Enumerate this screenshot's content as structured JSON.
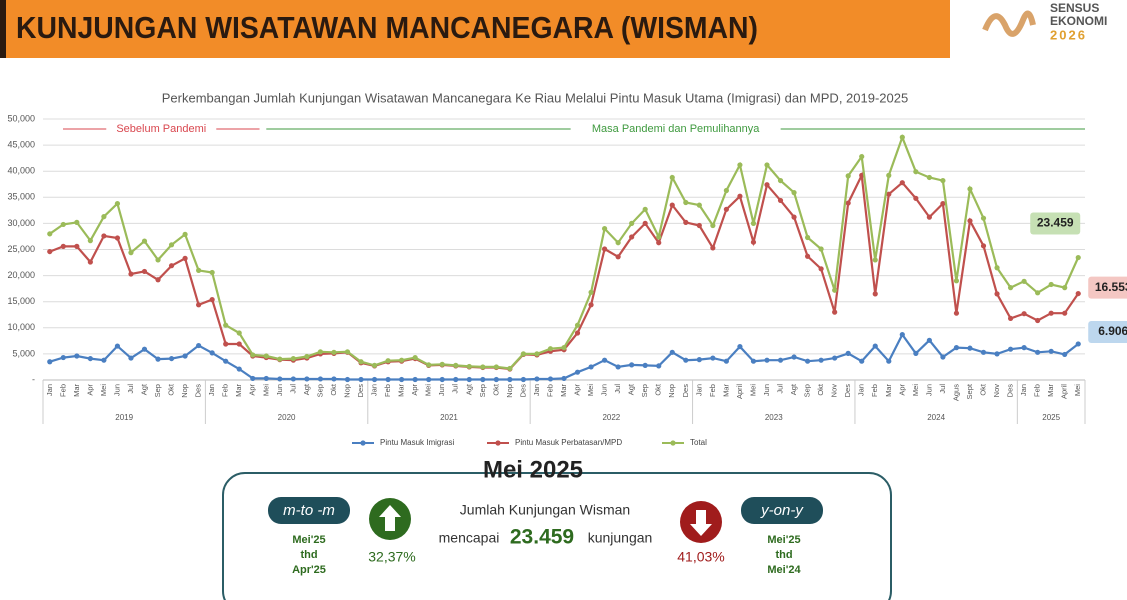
{
  "header": {
    "title": "KUNJUNGAN WISATAWAN MANCANEGARA (WISMAN)",
    "logo": [
      "SENSUS",
      "EKONOMI",
      "2026"
    ]
  },
  "chart_data": {
    "type": "line",
    "title": "Perkembangan Jumlah  Kunjungan Wisatawan Mancanegara Ke Riau Melalui Pintu Masuk Utama (Imigrasi) dan MPD, 2019-2025",
    "annotations": [
      {
        "text": "Sebelum Pandemi",
        "color": "#d9474f"
      },
      {
        "text": "Masa Pandemi dan Pemulihannya",
        "color": "#3f9a3f"
      }
    ],
    "years": [
      {
        "label": "2019",
        "months": [
          "Jan",
          "Feb",
          "Mar",
          "Apr",
          "Mei",
          "Jun",
          "Jul",
          "Agt",
          "Sep",
          "Okt",
          "Nop",
          "Des"
        ]
      },
      {
        "label": "2020",
        "months": [
          "Jan",
          "Feb",
          "Mar",
          "Apr",
          "Mei",
          "Jun",
          "Jul",
          "Agt",
          "Sep",
          "Okt",
          "Nop",
          "Des"
        ]
      },
      {
        "label": "2021",
        "months": [
          "Jan",
          "Feb",
          "Mar",
          "Apr",
          "Mei",
          "Jun",
          "Jul",
          "Agt",
          "Sep",
          "Okt",
          "Nop",
          "Des"
        ]
      },
      {
        "label": "2022",
        "months": [
          "Jan",
          "Feb",
          "Mar",
          "Apr",
          "Mei",
          "Jun",
          "Jul",
          "Agt",
          "Sep",
          "Okt",
          "Nop",
          "Des"
        ]
      },
      {
        "label": "2023",
        "months": [
          "Jan",
          "Feb",
          "Mar",
          "April",
          "Mei",
          "Jun",
          "Jul",
          "Agt",
          "Sep",
          "Okt",
          "Nov",
          "Des"
        ]
      },
      {
        "label": "2024",
        "months": [
          "Jan",
          "Feb",
          "Mar",
          "Apr",
          "Mei",
          "Jun",
          "Jul",
          "Agus",
          "Sept",
          "Okt",
          "Nov",
          "Des"
        ]
      },
      {
        "label": "2025",
        "months": [
          "Jan",
          "Feb",
          "Mar",
          "April",
          "Mei"
        ]
      }
    ],
    "series": [
      {
        "name": "Pintu Masuk Imigrasi",
        "color": "#4a7fc1",
        "values": [
          3500,
          4300,
          4600,
          4100,
          3800,
          6500,
          4200,
          5900,
          4000,
          4100,
          4600,
          6600,
          5200,
          3600,
          2100,
          300,
          300,
          200,
          200,
          200,
          200,
          200,
          100,
          100,
          100,
          100,
          100,
          100,
          100,
          100,
          100,
          100,
          100,
          100,
          100,
          100,
          200,
          200,
          300,
          1500,
          2500,
          3800,
          2500,
          2900,
          2800,
          2700,
          5300,
          3800,
          3900,
          4200,
          3600,
          6400,
          3600,
          3800,
          3800,
          4400,
          3600,
          3800,
          4200,
          5100,
          3600,
          6500,
          3600,
          8700,
          5100,
          7600,
          4400,
          6200,
          6100,
          5300,
          5000,
          5900,
          6200,
          5300,
          5500,
          4900,
          6906
        ],
        "value_labels": [
          null,
          null,
          null,
          null,
          null,
          null,
          null,
          null,
          null,
          null,
          null,
          null,
          null,
          null,
          null,
          null,
          null,
          null,
          null,
          null,
          null,
          null,
          null,
          null,
          null,
          null,
          null,
          null,
          null,
          null,
          null,
          null,
          null,
          null,
          null,
          null,
          null,
          null,
          null,
          null,
          null,
          null,
          null,
          null,
          null,
          null,
          null,
          null,
          null,
          null,
          null,
          null,
          null,
          null,
          null,
          null,
          null,
          null,
          null,
          null,
          null,
          null,
          null,
          null,
          null,
          null,
          null,
          null,
          null,
          null,
          null,
          null,
          null,
          null,
          null,
          null,
          "6.906"
        ]
      },
      {
        "name": "Pintu Masuk Perbatasan/MPD",
        "color": "#c0504d",
        "values": [
          24600,
          25600,
          25600,
          22600,
          27600,
          27200,
          20300,
          20800,
          19200,
          21900,
          23300,
          14400,
          15400,
          6900,
          6900,
          4600,
          4300,
          3900,
          3800,
          4200,
          5000,
          5100,
          5300,
          3300,
          2700,
          3500,
          3600,
          4100,
          2800,
          2900,
          2700,
          2500,
          2400,
          2400,
          2100,
          4900,
          4800,
          5500,
          5800,
          9000,
          14400,
          25100,
          23600,
          27400,
          30000,
          26300,
          33500,
          30200,
          29600,
          25300,
          32700,
          35200,
          26400,
          37400,
          34400,
          31200,
          23700,
          21300,
          13000,
          33900,
          39200,
          16500,
          35600,
          37800,
          34800,
          31200,
          33800,
          12800,
          30500,
          25700,
          16500,
          11800,
          12700,
          11400,
          12800,
          12800,
          16553
        ],
        "value_labels": [
          null,
          null,
          null,
          null,
          null,
          null,
          null,
          null,
          null,
          null,
          null,
          null,
          null,
          null,
          null,
          null,
          null,
          null,
          null,
          null,
          null,
          null,
          null,
          null,
          null,
          null,
          null,
          null,
          null,
          null,
          null,
          null,
          null,
          null,
          null,
          null,
          null,
          null,
          null,
          null,
          null,
          null,
          null,
          null,
          null,
          null,
          null,
          null,
          null,
          null,
          null,
          null,
          null,
          null,
          null,
          null,
          null,
          null,
          null,
          null,
          null,
          null,
          null,
          null,
          null,
          null,
          null,
          null,
          null,
          null,
          null,
          null,
          null,
          null,
          null,
          null,
          "16.553"
        ]
      },
      {
        "name": "Total",
        "color": "#9bbb59",
        "values": [
          28000,
          29800,
          30200,
          26700,
          31300,
          33800,
          24400,
          26600,
          23000,
          25900,
          27900,
          21000,
          20600,
          10500,
          9000,
          4800,
          4600,
          4000,
          4100,
          4500,
          5400,
          5300,
          5400,
          3500,
          2800,
          3700,
          3800,
          4300,
          2900,
          3000,
          2800,
          2600,
          2500,
          2500,
          2200,
          5000,
          5000,
          6000,
          6200,
          10500,
          16800,
          29000,
          26300,
          30000,
          32700,
          27400,
          38800,
          34000,
          33500,
          29600,
          36300,
          41200,
          30000,
          41200,
          38200,
          35900,
          27300,
          25100,
          17200,
          39100,
          42800,
          23000,
          39200,
          46500,
          39900,
          38800,
          38200,
          19000,
          36600,
          31000,
          21500,
          17700,
          18900,
          16700,
          18300,
          17700,
          23459
        ],
        "value_labels": [
          null,
          null,
          null,
          null,
          null,
          null,
          null,
          null,
          null,
          null,
          null,
          null,
          null,
          null,
          null,
          null,
          null,
          null,
          null,
          null,
          null,
          null,
          null,
          null,
          null,
          null,
          null,
          null,
          null,
          null,
          null,
          null,
          null,
          null,
          null,
          null,
          null,
          null,
          null,
          null,
          null,
          null,
          null,
          null,
          null,
          null,
          null,
          null,
          null,
          null,
          null,
          null,
          null,
          null,
          null,
          null,
          null,
          null,
          null,
          null,
          null,
          null,
          null,
          null,
          null,
          null,
          null,
          null,
          null,
          null,
          null,
          null,
          null,
          null,
          null,
          null,
          "23.459"
        ]
      }
    ],
    "ylim": [
      0,
      50000
    ],
    "yticks": [
      {
        "value": 0,
        "label": "-"
      },
      {
        "value": 5000,
        "label": "5,000"
      },
      {
        "value": 10000,
        "label": "10,000"
      },
      {
        "value": 15000,
        "label": "15,000"
      },
      {
        "value": 20000,
        "label": "20,000"
      },
      {
        "value": 25000,
        "label": "25,000"
      },
      {
        "value": 30000,
        "label": "30,000"
      },
      {
        "value": 35000,
        "label": "35,000"
      },
      {
        "value": 40000,
        "label": "40,000"
      },
      {
        "value": 45000,
        "label": "45,000"
      },
      {
        "value": 50000,
        "label": "50,000"
      }
    ],
    "grid": true,
    "legend": "bottom"
  },
  "summary": {
    "title": "Mei 2025",
    "mtm": {
      "tag": "m-to -m",
      "period": [
        "Mei'25",
        "thd",
        "Apr'25"
      ],
      "change": "32,37%"
    },
    "text": {
      "line1": "Jumlah Kunjungan Wisman",
      "pre": "mencapai",
      "value": "23.459",
      "post": "kunjungan"
    },
    "yoy": {
      "tag": "y-on-y",
      "period": [
        "Mei'25",
        "thd",
        "Mei'24"
      ],
      "change": "41,03%"
    }
  }
}
